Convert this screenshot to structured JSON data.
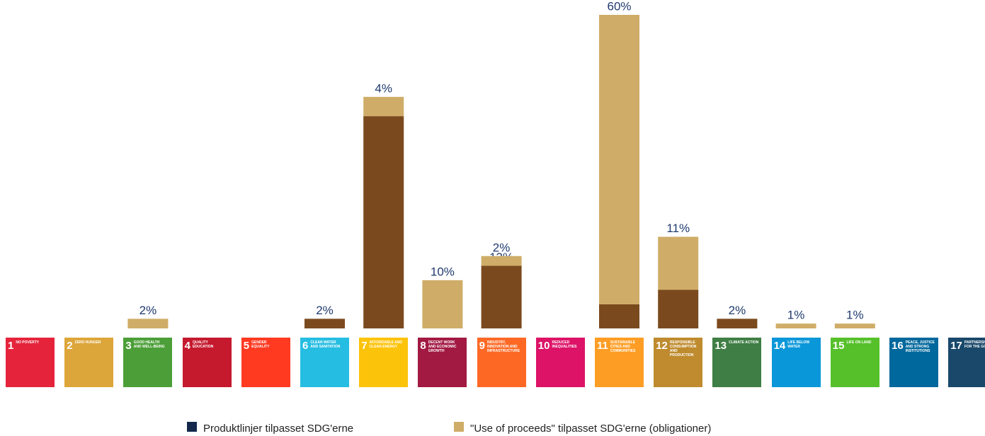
{
  "chart_data": {
    "type": "stacked_bar",
    "categories": [
      "NO POVERTY",
      "ZERO HUNGER",
      "GOOD HEALTH AND WELL-BEING",
      "QUALITY EDUCATION",
      "GENDER EQUALITY",
      "CLEAN WATER AND SANITATION",
      "AFFORDABLE AND CLEAN ENERGY",
      "DECENT WORK AND ECONOMIC GROWTH",
      "INDUSTRY, INNOVATION AND INFRASTRUCTURE",
      "REDUCED INEQUALITIES",
      "SUSTAINABLE CITIES AND COMMUNITIES",
      "RESPONSIBLE CONSUMPTION AND PRODUCTION",
      "CLIMATE ACTION",
      "LIFE BELOW WATER",
      "LIFE ON LAND",
      "PEACE, JUSTICE AND STRONG INSTITUTIONS",
      "PARTNERSHIPS FOR THE GOALS"
    ],
    "category_numbers": [
      1,
      2,
      3,
      4,
      5,
      6,
      7,
      8,
      9,
      10,
      11,
      12,
      13,
      14,
      15,
      16,
      17
    ],
    "category_colors": [
      "#E5243B",
      "#DDA63A",
      "#4C9F38",
      "#C5192D",
      "#FF3A21",
      "#26BDE2",
      "#FCC30B",
      "#A21942",
      "#FD6925",
      "#DD1367",
      "#FD9D24",
      "#BF8B2E",
      "#3F7E44",
      "#0A97D9",
      "#56C02B",
      "#00689D",
      "#19486A"
    ],
    "series": [
      {
        "name": "Produktlinjer tilpasset SDG'erne",
        "color": "#7a4a1e",
        "legend_color": "#14284b",
        "values": [
          null,
          null,
          null,
          null,
          null,
          2,
          44,
          null,
          13,
          null,
          5,
          8,
          2,
          null,
          null,
          null,
          null
        ],
        "value_labels": [
          null,
          null,
          null,
          null,
          null,
          "2%",
          "44%",
          null,
          "13%",
          null,
          "5%",
          "8%",
          "2%",
          null,
          null,
          null,
          null
        ]
      },
      {
        "name": "\"Use of proceeds\" tilpasset SDG'erne (obligationer)",
        "color": "#cfad68",
        "legend_color": "#cfad68",
        "values": [
          null,
          null,
          2,
          null,
          null,
          null,
          4,
          10,
          2,
          null,
          60,
          11,
          null,
          1,
          1,
          null,
          null
        ],
        "value_labels": [
          null,
          null,
          "2%",
          null,
          null,
          null,
          "4%",
          "10%",
          "2%",
          null,
          "60%",
          "11%",
          null,
          "1%",
          "1%",
          null,
          null
        ]
      }
    ],
    "ylim": [
      0,
      65
    ],
    "label_color": "#1f3a6e"
  }
}
